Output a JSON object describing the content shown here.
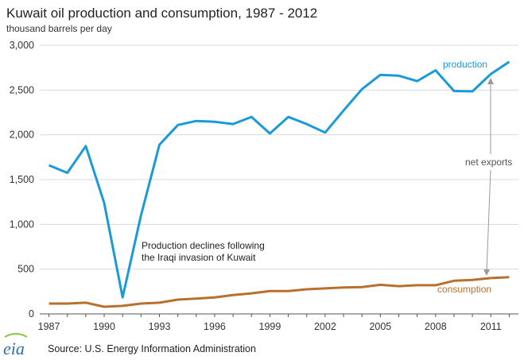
{
  "chart_data": {
    "type": "line",
    "title": "Kuwait oil production and consumption, 1987 - 2012",
    "subtitle": "thousand barrels per day",
    "xlabel": "",
    "ylabel": "",
    "x": [
      1987,
      1988,
      1989,
      1990,
      1991,
      1992,
      1993,
      1994,
      1995,
      1996,
      1997,
      1998,
      1999,
      2000,
      2001,
      2002,
      2003,
      2004,
      2005,
      2006,
      2007,
      2008,
      2009,
      2010,
      2011,
      2012
    ],
    "xlim": [
      1986.5,
      2012.5
    ],
    "ylim": [
      0,
      3000
    ],
    "x_ticks": [
      "1987",
      "1990",
      "1993",
      "1996",
      "1999",
      "2002",
      "2005",
      "2008",
      "2011"
    ],
    "y_ticks": [
      "0",
      "500",
      "1,000",
      "1,500",
      "2,000",
      "2,500",
      "3,000"
    ],
    "grid": "horizontal",
    "series": [
      {
        "name": "production",
        "color": "#1a9ad6",
        "values": [
          1660,
          1575,
          1875,
          1240,
          185,
          1100,
          1890,
          2110,
          2155,
          2145,
          2120,
          2200,
          2015,
          2200,
          2120,
          2025,
          2270,
          2510,
          2670,
          2660,
          2600,
          2720,
          2490,
          2485,
          2680,
          2815
        ]
      },
      {
        "name": "consumption",
        "color": "#b8702f",
        "values": [
          115,
          115,
          125,
          80,
          90,
          115,
          125,
          160,
          170,
          185,
          210,
          230,
          255,
          255,
          275,
          285,
          295,
          300,
          325,
          310,
          320,
          320,
          370,
          380,
          400,
          410
        ]
      }
    ],
    "annotations": {
      "decline_line1": "Production declines following",
      "decline_line2": "the Iraqi invasion of Kuwait",
      "net_exports": "net exports"
    }
  },
  "source": {
    "logo": "eia",
    "text": "Source: U.S. Energy Information  Administration"
  }
}
